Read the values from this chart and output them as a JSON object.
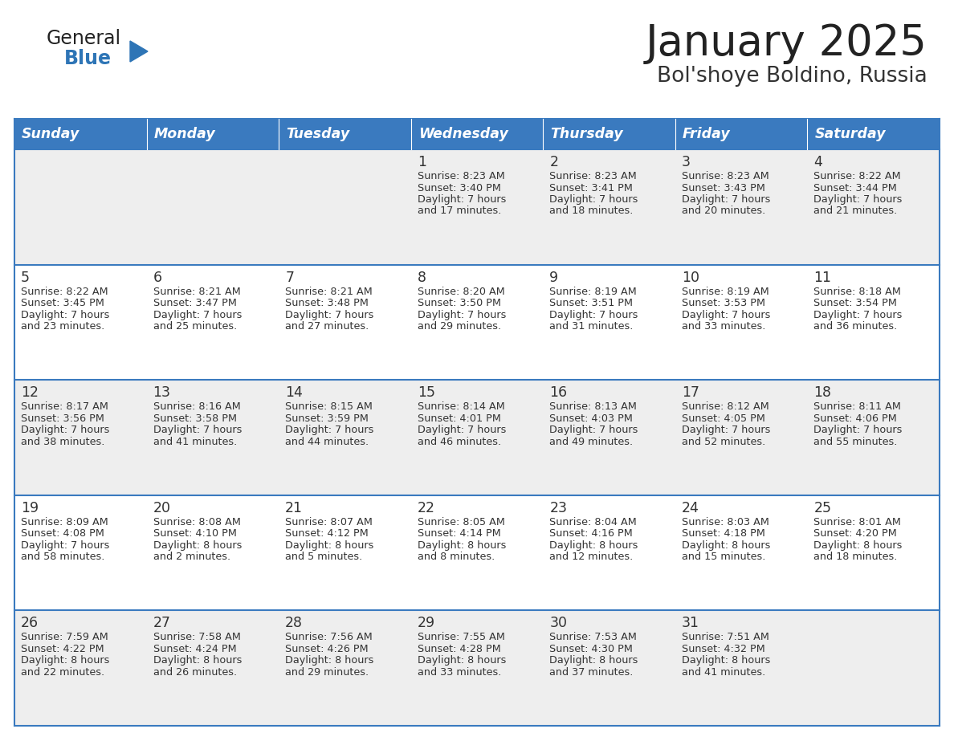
{
  "title": "January 2025",
  "subtitle": "Bol'shoye Boldino, Russia",
  "days_of_week": [
    "Sunday",
    "Monday",
    "Tuesday",
    "Wednesday",
    "Thursday",
    "Friday",
    "Saturday"
  ],
  "header_bg": "#3a7abf",
  "header_text": "#ffffff",
  "row_bg_even": "#eeeeee",
  "row_bg_odd": "#ffffff",
  "cell_text": "#333333",
  "day_number_color": "#333333",
  "grid_line_color": "#3a7abf",
  "title_color": "#222222",
  "subtitle_color": "#333333",
  "logo_general_color": "#222222",
  "logo_blue_color": "#2e75b6",
  "calendar": [
    [
      null,
      null,
      null,
      {
        "day": 1,
        "sunrise": "8:23 AM",
        "sunset": "3:40 PM",
        "daylight_line1": "Daylight: 7 hours",
        "daylight_line2": "and 17 minutes."
      },
      {
        "day": 2,
        "sunrise": "8:23 AM",
        "sunset": "3:41 PM",
        "daylight_line1": "Daylight: 7 hours",
        "daylight_line2": "and 18 minutes."
      },
      {
        "day": 3,
        "sunrise": "8:23 AM",
        "sunset": "3:43 PM",
        "daylight_line1": "Daylight: 7 hours",
        "daylight_line2": "and 20 minutes."
      },
      {
        "day": 4,
        "sunrise": "8:22 AM",
        "sunset": "3:44 PM",
        "daylight_line1": "Daylight: 7 hours",
        "daylight_line2": "and 21 minutes."
      }
    ],
    [
      {
        "day": 5,
        "sunrise": "8:22 AM",
        "sunset": "3:45 PM",
        "daylight_line1": "Daylight: 7 hours",
        "daylight_line2": "and 23 minutes."
      },
      {
        "day": 6,
        "sunrise": "8:21 AM",
        "sunset": "3:47 PM",
        "daylight_line1": "Daylight: 7 hours",
        "daylight_line2": "and 25 minutes."
      },
      {
        "day": 7,
        "sunrise": "8:21 AM",
        "sunset": "3:48 PM",
        "daylight_line1": "Daylight: 7 hours",
        "daylight_line2": "and 27 minutes."
      },
      {
        "day": 8,
        "sunrise": "8:20 AM",
        "sunset": "3:50 PM",
        "daylight_line1": "Daylight: 7 hours",
        "daylight_line2": "and 29 minutes."
      },
      {
        "day": 9,
        "sunrise": "8:19 AM",
        "sunset": "3:51 PM",
        "daylight_line1": "Daylight: 7 hours",
        "daylight_line2": "and 31 minutes."
      },
      {
        "day": 10,
        "sunrise": "8:19 AM",
        "sunset": "3:53 PM",
        "daylight_line1": "Daylight: 7 hours",
        "daylight_line2": "and 33 minutes."
      },
      {
        "day": 11,
        "sunrise": "8:18 AM",
        "sunset": "3:54 PM",
        "daylight_line1": "Daylight: 7 hours",
        "daylight_line2": "and 36 minutes."
      }
    ],
    [
      {
        "day": 12,
        "sunrise": "8:17 AM",
        "sunset": "3:56 PM",
        "daylight_line1": "Daylight: 7 hours",
        "daylight_line2": "and 38 minutes."
      },
      {
        "day": 13,
        "sunrise": "8:16 AM",
        "sunset": "3:58 PM",
        "daylight_line1": "Daylight: 7 hours",
        "daylight_line2": "and 41 minutes."
      },
      {
        "day": 14,
        "sunrise": "8:15 AM",
        "sunset": "3:59 PM",
        "daylight_line1": "Daylight: 7 hours",
        "daylight_line2": "and 44 minutes."
      },
      {
        "day": 15,
        "sunrise": "8:14 AM",
        "sunset": "4:01 PM",
        "daylight_line1": "Daylight: 7 hours",
        "daylight_line2": "and 46 minutes."
      },
      {
        "day": 16,
        "sunrise": "8:13 AM",
        "sunset": "4:03 PM",
        "daylight_line1": "Daylight: 7 hours",
        "daylight_line2": "and 49 minutes."
      },
      {
        "day": 17,
        "sunrise": "8:12 AM",
        "sunset": "4:05 PM",
        "daylight_line1": "Daylight: 7 hours",
        "daylight_line2": "and 52 minutes."
      },
      {
        "day": 18,
        "sunrise": "8:11 AM",
        "sunset": "4:06 PM",
        "daylight_line1": "Daylight: 7 hours",
        "daylight_line2": "and 55 minutes."
      }
    ],
    [
      {
        "day": 19,
        "sunrise": "8:09 AM",
        "sunset": "4:08 PM",
        "daylight_line1": "Daylight: 7 hours",
        "daylight_line2": "and 58 minutes."
      },
      {
        "day": 20,
        "sunrise": "8:08 AM",
        "sunset": "4:10 PM",
        "daylight_line1": "Daylight: 8 hours",
        "daylight_line2": "and 2 minutes."
      },
      {
        "day": 21,
        "sunrise": "8:07 AM",
        "sunset": "4:12 PM",
        "daylight_line1": "Daylight: 8 hours",
        "daylight_line2": "and 5 minutes."
      },
      {
        "day": 22,
        "sunrise": "8:05 AM",
        "sunset": "4:14 PM",
        "daylight_line1": "Daylight: 8 hours",
        "daylight_line2": "and 8 minutes."
      },
      {
        "day": 23,
        "sunrise": "8:04 AM",
        "sunset": "4:16 PM",
        "daylight_line1": "Daylight: 8 hours",
        "daylight_line2": "and 12 minutes."
      },
      {
        "day": 24,
        "sunrise": "8:03 AM",
        "sunset": "4:18 PM",
        "daylight_line1": "Daylight: 8 hours",
        "daylight_line2": "and 15 minutes."
      },
      {
        "day": 25,
        "sunrise": "8:01 AM",
        "sunset": "4:20 PM",
        "daylight_line1": "Daylight: 8 hours",
        "daylight_line2": "and 18 minutes."
      }
    ],
    [
      {
        "day": 26,
        "sunrise": "7:59 AM",
        "sunset": "4:22 PM",
        "daylight_line1": "Daylight: 8 hours",
        "daylight_line2": "and 22 minutes."
      },
      {
        "day": 27,
        "sunrise": "7:58 AM",
        "sunset": "4:24 PM",
        "daylight_line1": "Daylight: 8 hours",
        "daylight_line2": "and 26 minutes."
      },
      {
        "day": 28,
        "sunrise": "7:56 AM",
        "sunset": "4:26 PM",
        "daylight_line1": "Daylight: 8 hours",
        "daylight_line2": "and 29 minutes."
      },
      {
        "day": 29,
        "sunrise": "7:55 AM",
        "sunset": "4:28 PM",
        "daylight_line1": "Daylight: 8 hours",
        "daylight_line2": "and 33 minutes."
      },
      {
        "day": 30,
        "sunrise": "7:53 AM",
        "sunset": "4:30 PM",
        "daylight_line1": "Daylight: 8 hours",
        "daylight_line2": "and 37 minutes."
      },
      {
        "day": 31,
        "sunrise": "7:51 AM",
        "sunset": "4:32 PM",
        "daylight_line1": "Daylight: 8 hours",
        "daylight_line2": "and 41 minutes."
      },
      null
    ]
  ]
}
